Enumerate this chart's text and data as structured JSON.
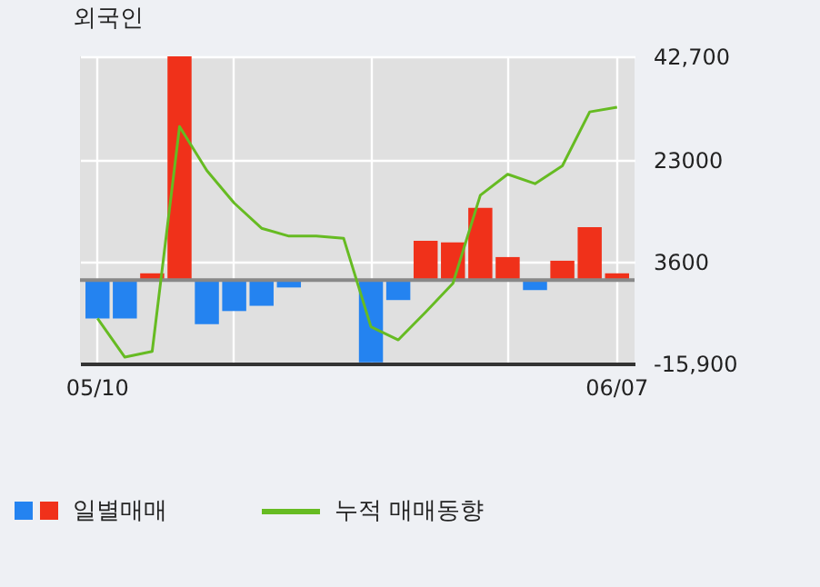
{
  "chart_data": {
    "type": "bar",
    "title": "외국인",
    "categories": [
      "05/10",
      null,
      null,
      null,
      null,
      null,
      null,
      null,
      null,
      null,
      null,
      null,
      null,
      null,
      null,
      null,
      null,
      null,
      null,
      "06/07"
    ],
    "series": [
      {
        "name": "일별매매",
        "colors": [
          "#2483f0",
          "#2483f0",
          "#f0311a",
          "#f0311a",
          "#2483f0",
          "#2483f0",
          "#2483f0",
          "#2483f0",
          "#2483f0",
          "#2483f0",
          "#2483f0",
          "#2483f0",
          "#f0311a",
          "#f0311a",
          "#f0311a",
          "#f0311a",
          "#2483f0",
          "#f0311a",
          "#f0311a",
          "#f0311a"
        ],
        "values": [
          -7300,
          -7300,
          1300,
          42700,
          -8400,
          -5900,
          -4900,
          -1400,
          0,
          0,
          -15700,
          -3800,
          7500,
          7200,
          13800,
          4400,
          -1900,
          3700,
          10100,
          1300
        ]
      },
      {
        "name": "누적 매매동향",
        "type": "line",
        "color": "#66bb22",
        "values": [
          -7300,
          -14700,
          -13600,
          29300,
          20900,
          14700,
          9900,
          8400,
          8400,
          8000,
          -8900,
          -11400,
          -6100,
          -600,
          16200,
          20200,
          18400,
          21800,
          32100,
          33000
        ]
      }
    ],
    "ylim": [
      -15900,
      42700
    ],
    "yticks": [
      {
        "value": 42700,
        "label": "42,700"
      },
      23000,
      3600,
      {
        "value": -15900,
        "label": "-15,900"
      }
    ],
    "ref_lines": [
      {
        "axis": "y",
        "value": 0,
        "color": "#888888"
      }
    ],
    "grid": true,
    "legend": "bottom"
  }
}
